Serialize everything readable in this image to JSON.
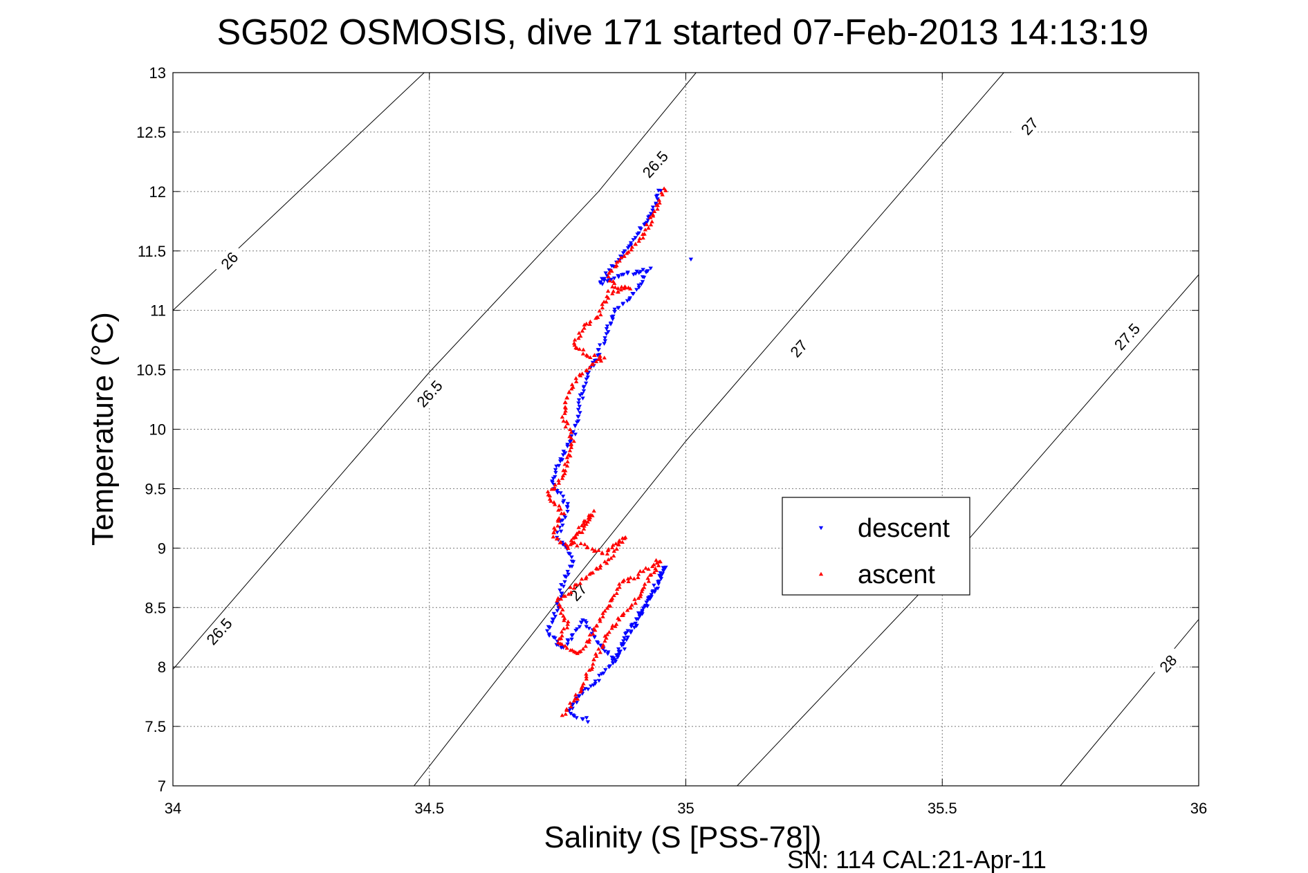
{
  "chart_data": {
    "type": "scatter",
    "title": "SG502 OSMOSIS, dive 171 started 07-Feb-2013 14:13:19",
    "xlabel": "Salinity (S [PSS-78])",
    "ylabel": "Temperature (°C)",
    "xlim": [
      34,
      36
    ],
    "ylim": [
      7,
      13
    ],
    "xticks": [
      "34",
      "34.5",
      "35",
      "35.5",
      "36"
    ],
    "yticks": [
      "7",
      "7.5",
      "8",
      "8.5",
      "9",
      "9.5",
      "10",
      "10.5",
      "11",
      "11.5",
      "12",
      "12.5",
      "13"
    ],
    "grid": true,
    "legend_position": "center-right",
    "density_contours": [
      {
        "sigma": 26.0,
        "points": [
          [
            34.0,
            11.0
          ],
          [
            34.49,
            13.0
          ]
        ]
      },
      {
        "sigma": 26.5,
        "points": [
          [
            34.0,
            7.98
          ],
          [
            34.5,
            10.48
          ],
          [
            34.83,
            12.0
          ],
          [
            35.02,
            13.0
          ]
        ]
      },
      {
        "sigma": 27.0,
        "points": [
          [
            34.47,
            7.0
          ],
          [
            34.75,
            8.55
          ],
          [
            35.0,
            9.9
          ],
          [
            35.5,
            12.4
          ],
          [
            35.62,
            13.0
          ]
        ]
      },
      {
        "sigma": 27.5,
        "points": [
          [
            35.1,
            7.0
          ],
          [
            35.5,
            8.82
          ],
          [
            36.0,
            11.3
          ]
        ]
      },
      {
        "sigma": 28.0,
        "points": [
          [
            35.73,
            7.0
          ],
          [
            36.0,
            8.4
          ]
        ]
      }
    ],
    "contour_labels": [
      {
        "text": "26",
        "x": 34.11,
        "y": 11.42
      },
      {
        "text": "26.5",
        "x": 34.09,
        "y": 8.3
      },
      {
        "text": "26.5",
        "x": 34.5,
        "y": 10.3
      },
      {
        "text": "26.5",
        "x": 34.94,
        "y": 12.23
      },
      {
        "text": "27",
        "x": 34.79,
        "y": 8.63
      },
      {
        "text": "27",
        "x": 35.22,
        "y": 10.68
      },
      {
        "text": "27",
        "x": 35.67,
        "y": 12.55
      },
      {
        "text": "27.5",
        "x": 35.86,
        "y": 10.78
      },
      {
        "text": "28",
        "x": 35.94,
        "y": 8.03
      }
    ],
    "series": [
      {
        "name": "descent",
        "color": "#0000ff",
        "marker": "triangle-down",
        "path": [
          [
            34.95,
            12.02
          ],
          [
            34.93,
            11.78
          ],
          [
            34.9,
            11.62
          ],
          [
            34.88,
            11.48
          ],
          [
            34.86,
            11.38
          ],
          [
            34.83,
            11.22
          ],
          [
            34.85,
            11.26
          ],
          [
            34.88,
            11.3
          ],
          [
            34.93,
            11.35
          ],
          [
            34.9,
            11.15
          ],
          [
            34.86,
            10.98
          ],
          [
            34.84,
            10.75
          ],
          [
            34.82,
            10.55
          ],
          [
            34.8,
            10.35
          ],
          [
            34.79,
            10.12
          ],
          [
            34.78,
            9.95
          ],
          [
            34.76,
            9.78
          ],
          [
            34.74,
            9.55
          ],
          [
            34.77,
            9.35
          ],
          [
            34.75,
            9.1
          ],
          [
            34.78,
            8.9
          ],
          [
            34.76,
            8.7
          ],
          [
            34.75,
            8.5
          ],
          [
            34.73,
            8.3
          ],
          [
            34.76,
            8.15
          ],
          [
            34.8,
            8.4
          ],
          [
            34.83,
            8.2
          ],
          [
            34.86,
            8.05
          ],
          [
            34.88,
            8.25
          ],
          [
            34.91,
            8.45
          ],
          [
            34.94,
            8.65
          ],
          [
            34.96,
            8.85
          ],
          [
            34.92,
            8.5
          ],
          [
            34.87,
            8.1
          ],
          [
            34.83,
            7.9
          ],
          [
            34.79,
            7.75
          ],
          [
            34.77,
            7.62
          ],
          [
            34.81,
            7.55
          ]
        ],
        "stray_points": [
          [
            35.01,
            11.43
          ]
        ]
      },
      {
        "name": "ascent",
        "color": "#ff0000",
        "marker": "triangle-up",
        "path": [
          [
            34.96,
            12.02
          ],
          [
            34.92,
            11.65
          ],
          [
            34.9,
            11.55
          ],
          [
            34.87,
            11.42
          ],
          [
            34.85,
            11.3
          ],
          [
            34.86,
            11.2
          ],
          [
            34.89,
            11.18
          ],
          [
            34.85,
            11.15
          ],
          [
            34.83,
            10.95
          ],
          [
            34.8,
            10.85
          ],
          [
            34.78,
            10.7
          ],
          [
            34.81,
            10.62
          ],
          [
            34.84,
            10.6
          ],
          [
            34.79,
            10.45
          ],
          [
            34.77,
            10.3
          ],
          [
            34.76,
            10.1
          ],
          [
            34.78,
            9.9
          ],
          [
            34.77,
            9.75
          ],
          [
            34.76,
            9.6
          ],
          [
            34.73,
            9.45
          ],
          [
            34.76,
            9.3
          ],
          [
            34.74,
            9.12
          ],
          [
            34.77,
            9.0
          ],
          [
            34.8,
            9.2
          ],
          [
            34.82,
            9.3
          ],
          [
            34.78,
            9.05
          ],
          [
            34.84,
            8.95
          ],
          [
            34.88,
            9.1
          ],
          [
            34.85,
            8.9
          ],
          [
            34.79,
            8.7
          ],
          [
            34.75,
            8.55
          ],
          [
            34.77,
            8.35
          ],
          [
            34.75,
            8.2
          ],
          [
            34.79,
            8.1
          ],
          [
            34.82,
            8.3
          ],
          [
            34.85,
            8.5
          ],
          [
            34.87,
            8.7
          ],
          [
            34.9,
            8.75
          ],
          [
            34.95,
            8.9
          ],
          [
            34.91,
            8.6
          ],
          [
            34.85,
            8.3
          ],
          [
            34.82,
            8.05
          ],
          [
            34.8,
            7.85
          ],
          [
            34.78,
            7.7
          ],
          [
            34.76,
            7.6
          ]
        ]
      }
    ]
  },
  "footer": {
    "serial_cal": "SN: 114  CAL:21-Apr-11"
  }
}
